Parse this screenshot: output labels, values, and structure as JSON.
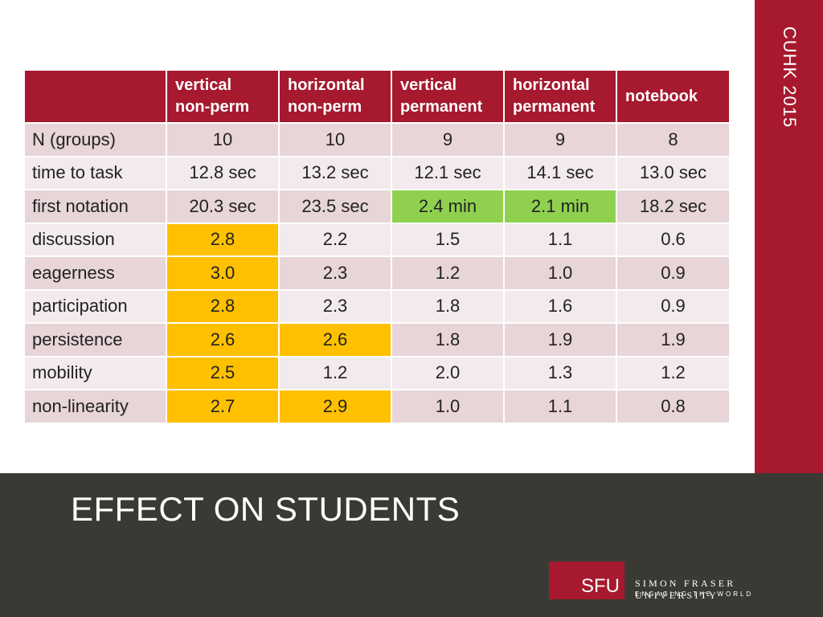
{
  "sidebar": {
    "text": "CUHK 2015"
  },
  "table": {
    "headers": [
      "",
      "vertical\nnon-perm",
      "horizontal\nnon-perm",
      "vertical\npermanent",
      "horizontal\npermanent",
      "notebook"
    ],
    "rows": [
      {
        "label": "N (groups)",
        "cells": [
          "10",
          "10",
          "9",
          "9",
          "8"
        ],
        "highlights": [
          "",
          "",
          "",
          "",
          ""
        ]
      },
      {
        "label": "time to task",
        "cells": [
          "12.8 sec",
          "13.2 sec",
          "12.1 sec",
          "14.1 sec",
          "13.0 sec"
        ],
        "highlights": [
          "",
          "",
          "",
          "",
          ""
        ]
      },
      {
        "label": "first notation",
        "cells": [
          "20.3 sec",
          "23.5 sec",
          "2.4 min",
          "2.1 min",
          "18.2 sec"
        ],
        "highlights": [
          "",
          "",
          "green",
          "green",
          ""
        ]
      },
      {
        "label": "discussion",
        "cells": [
          "2.8",
          "2.2",
          "1.5",
          "1.1",
          "0.6"
        ],
        "highlights": [
          "yellow",
          "",
          "",
          "",
          ""
        ]
      },
      {
        "label": "eagerness",
        "cells": [
          "3.0",
          "2.3",
          "1.2",
          "1.0",
          "0.9"
        ],
        "highlights": [
          "yellow",
          "",
          "",
          "",
          ""
        ]
      },
      {
        "label": "participation",
        "cells": [
          "2.8",
          "2.3",
          "1.8",
          "1.6",
          "0.9"
        ],
        "highlights": [
          "yellow",
          "",
          "",
          "",
          ""
        ]
      },
      {
        "label": "persistence",
        "cells": [
          "2.6",
          "2.6",
          "1.8",
          "1.9",
          "1.9"
        ],
        "highlights": [
          "yellow",
          "yellow",
          "",
          "",
          ""
        ]
      },
      {
        "label": "mobility",
        "cells": [
          "2.5",
          "1.2",
          "2.0",
          "1.3",
          "1.2"
        ],
        "highlights": [
          "yellow",
          "",
          "",
          "",
          ""
        ]
      },
      {
        "label": "non-linearity",
        "cells": [
          "2.7",
          "2.9",
          "1.0",
          "1.1",
          "0.8"
        ],
        "highlights": [
          "yellow",
          "yellow",
          "",
          "",
          ""
        ]
      }
    ]
  },
  "slide": {
    "title": "EFFECT ON STUDENTS"
  },
  "logo": {
    "mark": "SFU",
    "name": "SIMON FRASER UNIVERSITY",
    "tagline": "ENGAGING THE WORLD"
  },
  "colors": {
    "accent": "#a6192e",
    "footer": "#3a3a35",
    "highlight_yellow": "#ffc000",
    "highlight_green": "#8fd14f",
    "row_odd": "#e7d5d8",
    "row_even": "#f2eaec"
  }
}
